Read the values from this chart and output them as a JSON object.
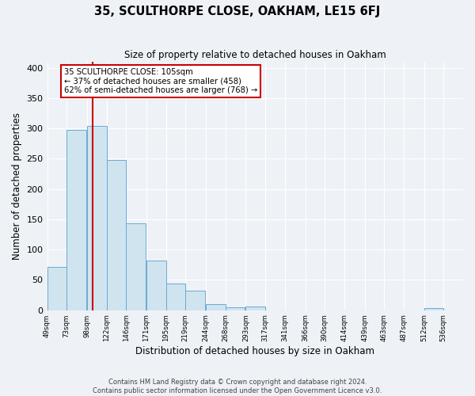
{
  "title": "35, SCULTHORPE CLOSE, OAKHAM, LE15 6FJ",
  "subtitle": "Size of property relative to detached houses in Oakham",
  "xlabel": "Distribution of detached houses by size in Oakham",
  "ylabel": "Number of detached properties",
  "bar_edges": [
    49,
    73,
    98,
    122,
    146,
    171,
    195,
    219,
    244,
    268,
    293,
    317,
    341,
    366,
    390,
    414,
    439,
    463,
    487,
    512,
    536
  ],
  "bar_heights": [
    72,
    298,
    304,
    248,
    144,
    82,
    44,
    32,
    10,
    5,
    6,
    0,
    0,
    0,
    0,
    0,
    0,
    0,
    0,
    3
  ],
  "bar_color": "#d0e4f0",
  "bar_edge_color": "#6aaad4",
  "property_line_x": 105,
  "property_line_color": "#cc0000",
  "ylim": [
    0,
    410
  ],
  "annotation_title": "35 SCULTHORPE CLOSE: 105sqm",
  "annotation_line1": "← 37% of detached houses are smaller (458)",
  "annotation_line2": "62% of semi-detached houses are larger (768) →",
  "annotation_box_color": "#ffffff",
  "annotation_box_edge_color": "#cc0000",
  "footer_line1": "Contains HM Land Registry data © Crown copyright and database right 2024.",
  "footer_line2": "Contains public sector information licensed under the Open Government Licence v3.0.",
  "background_color": "#eef2f7",
  "grid_color": "#ffffff",
  "tick_labels": [
    "49sqm",
    "73sqm",
    "98sqm",
    "122sqm",
    "146sqm",
    "171sqm",
    "195sqm",
    "219sqm",
    "244sqm",
    "268sqm",
    "293sqm",
    "317sqm",
    "341sqm",
    "366sqm",
    "390sqm",
    "414sqm",
    "439sqm",
    "463sqm",
    "487sqm",
    "512sqm",
    "536sqm"
  ]
}
